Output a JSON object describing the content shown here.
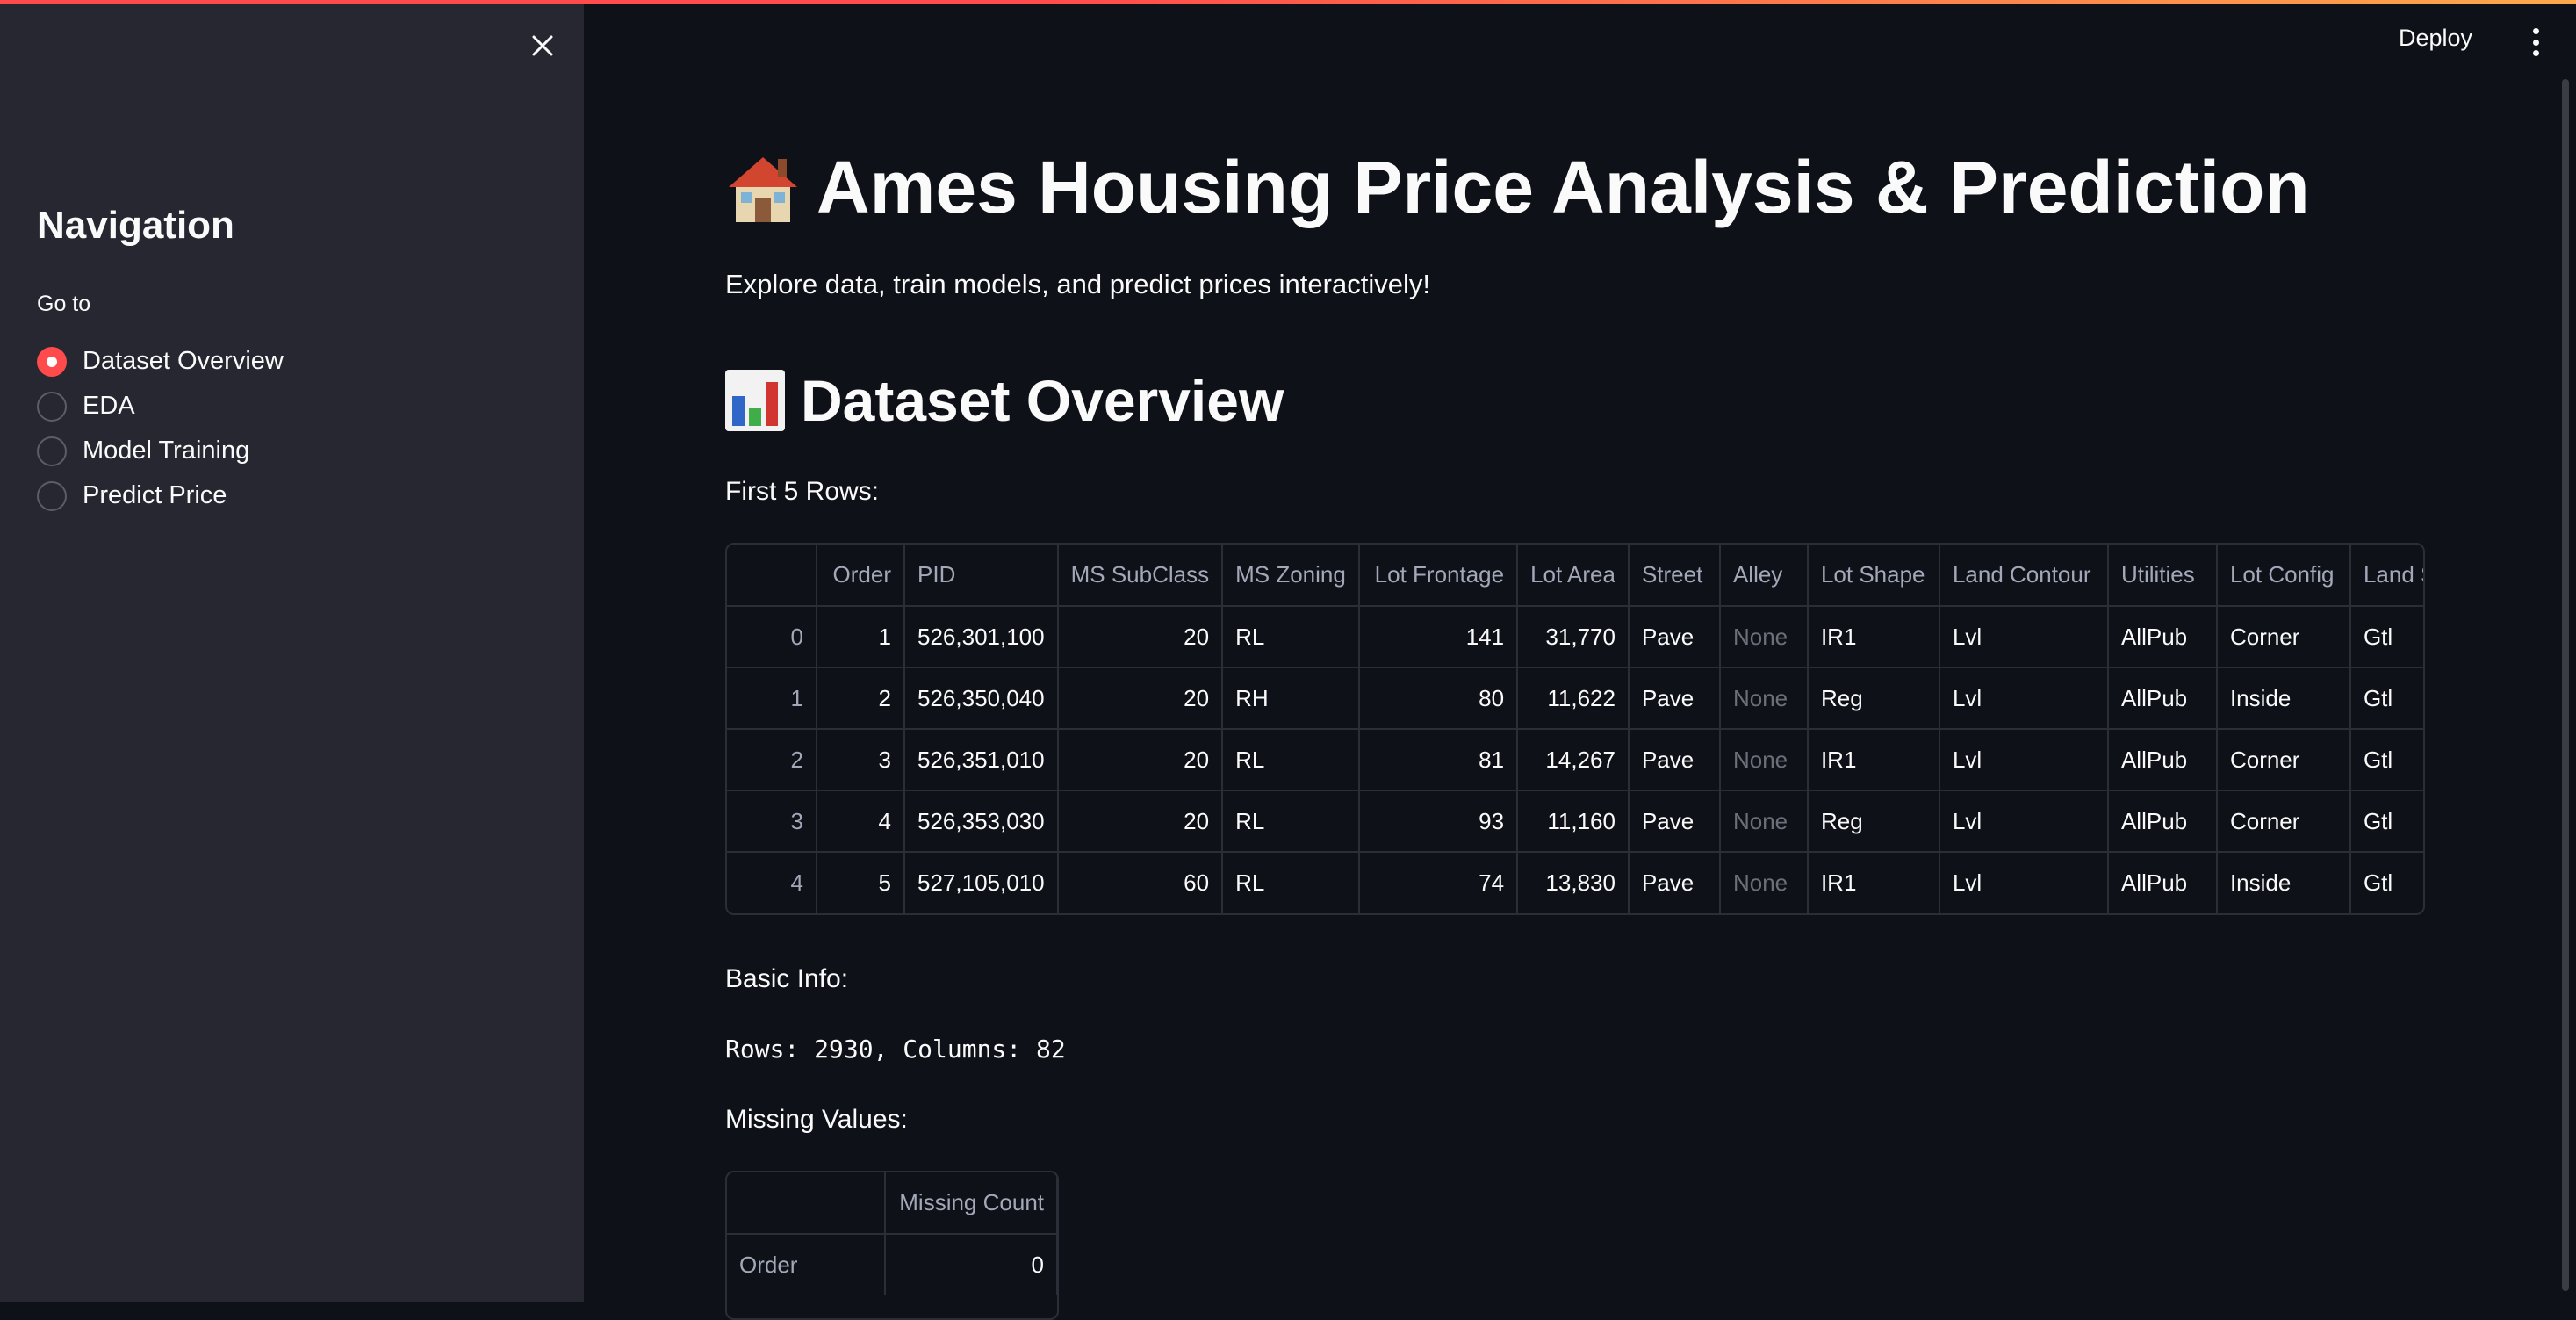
{
  "sidebar": {
    "title": "Navigation",
    "goto_label": "Go to",
    "items": [
      {
        "label": "Dataset Overview",
        "selected": true
      },
      {
        "label": "EDA",
        "selected": false
      },
      {
        "label": "Model Training",
        "selected": false
      },
      {
        "label": "Predict Price",
        "selected": false
      }
    ]
  },
  "header": {
    "deploy_label": "Deploy"
  },
  "main": {
    "title": "Ames Housing Price Analysis & Prediction",
    "subtitle": "Explore data, train models, and predict prices interactively!",
    "section_title": "Dataset Overview",
    "first_rows_label": "First 5 Rows:",
    "basic_info_label": "Basic Info:",
    "basic_info_text": "Rows: 2930, Columns: 82",
    "missing_values_label": "Missing Values:"
  },
  "table": {
    "columns": [
      "",
      "Order",
      "PID",
      "MS SubClass",
      "MS Zoning",
      "Lot Frontage",
      "Lot Area",
      "Street",
      "Alley",
      "Lot Shape",
      "Land Contour",
      "Utilities",
      "Lot Config",
      "Land S"
    ],
    "rows": [
      [
        "0",
        "1",
        "526,301,100",
        "20",
        "RL",
        "141",
        "31,770",
        "Pave",
        "None",
        "IR1",
        "Lvl",
        "AllPub",
        "Corner",
        "Gtl"
      ],
      [
        "1",
        "2",
        "526,350,040",
        "20",
        "RH",
        "80",
        "11,622",
        "Pave",
        "None",
        "Reg",
        "Lvl",
        "AllPub",
        "Inside",
        "Gtl"
      ],
      [
        "2",
        "3",
        "526,351,010",
        "20",
        "RL",
        "81",
        "14,267",
        "Pave",
        "None",
        "IR1",
        "Lvl",
        "AllPub",
        "Corner",
        "Gtl"
      ],
      [
        "3",
        "4",
        "526,353,030",
        "20",
        "RL",
        "93",
        "11,160",
        "Pave",
        "None",
        "Reg",
        "Lvl",
        "AllPub",
        "Corner",
        "Gtl"
      ],
      [
        "4",
        "5",
        "527,105,010",
        "60",
        "RL",
        "74",
        "13,830",
        "Pave",
        "None",
        "IR1",
        "Lvl",
        "AllPub",
        "Inside",
        "Gtl"
      ]
    ]
  },
  "missing_table": {
    "columns": [
      "",
      "Missing Count"
    ],
    "rows": [
      [
        "Order",
        "0"
      ]
    ]
  },
  "colors": {
    "accent": "#ff4b4b",
    "background": "#0e1117",
    "sidebar": "#262730"
  }
}
